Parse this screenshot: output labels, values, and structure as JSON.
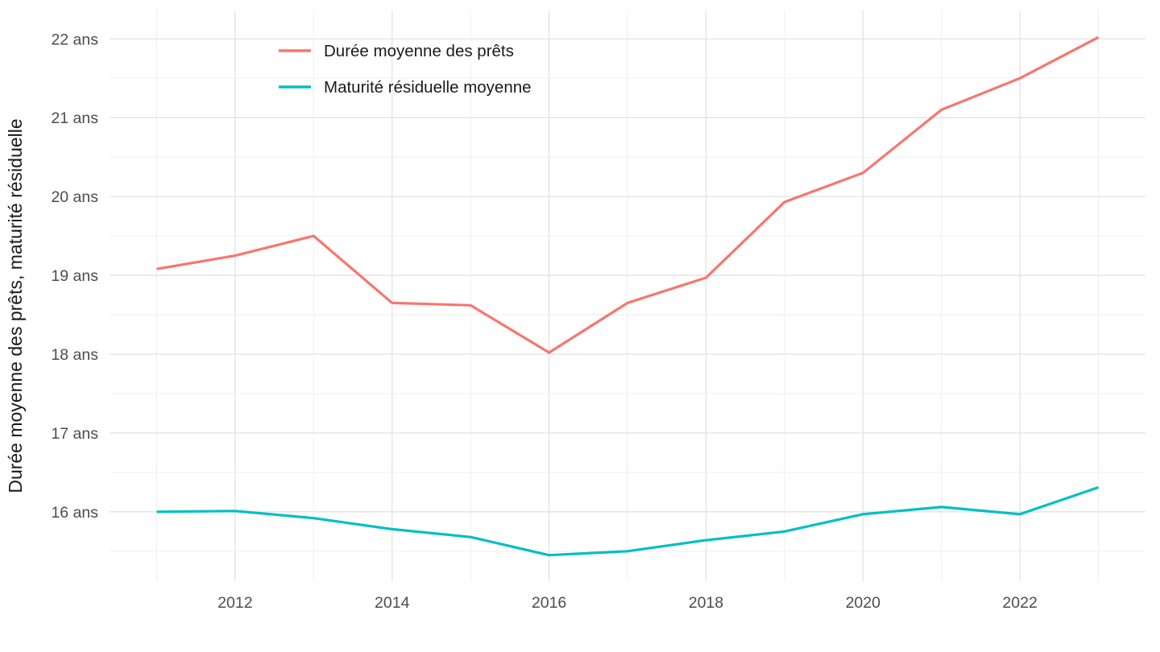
{
  "chart_data": {
    "type": "line",
    "x": [
      2011,
      2012,
      2013,
      2014,
      2015,
      2016,
      2017,
      2018,
      2019,
      2020,
      2021,
      2022,
      2023
    ],
    "series": [
      {
        "name": "Durée moyenne des prêts",
        "color": "#F8766D",
        "values": [
          19.08,
          19.25,
          19.5,
          18.65,
          18.62,
          18.02,
          18.65,
          18.97,
          19.93,
          20.3,
          21.1,
          21.5,
          22.02
        ]
      },
      {
        "name": "Maturité résiduelle moyenne",
        "color": "#00BFC4",
        "values": [
          16.0,
          16.01,
          15.92,
          15.78,
          15.68,
          15.45,
          15.5,
          15.64,
          15.75,
          15.97,
          16.06,
          15.97,
          16.31
        ]
      }
    ],
    "title": "",
    "xlabel": "",
    "ylabel": "Durée moyenne des prêts, maturité résiduelle",
    "x_tick_values": [
      2012,
      2014,
      2016,
      2018,
      2020,
      2022
    ],
    "x_tick_labels": [
      "2012",
      "2014",
      "2016",
      "2018",
      "2020",
      "2022"
    ],
    "y_tick_values": [
      16,
      17,
      18,
      19,
      20,
      21,
      22
    ],
    "y_tick_labels": [
      "16 ans",
      "17 ans",
      "18 ans",
      "19 ans",
      "20 ans",
      "21 ans",
      "22 ans"
    ],
    "xlim": [
      2010.4,
      2023.6
    ],
    "ylim": [
      15.12,
      22.36
    ],
    "grid": "on",
    "legend_position": "inside-top-left"
  },
  "colors": {
    "background": "#ffffff",
    "grid_major": "#E2E2E2",
    "grid_minor": "#EDEDED",
    "tick_text": "#4D4D4D",
    "axis_title_text": "#1A1A1A",
    "legend_text": "#1A1A1A"
  }
}
